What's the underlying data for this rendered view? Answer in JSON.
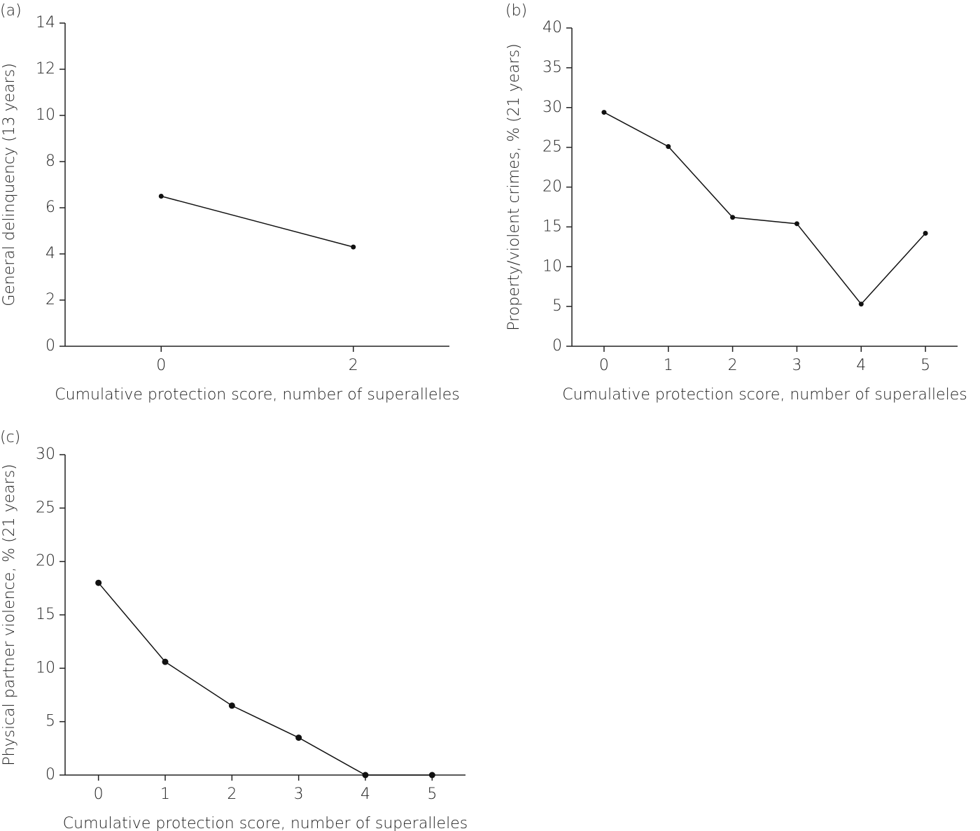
{
  "chart_data": [
    {
      "type": "line",
      "panel_label": "(a)",
      "x_label": "Cumulative protection score, number of superalleles",
      "y_label": "General delinquency (13 years)",
      "x": [
        0,
        2
      ],
      "values": [
        6.5,
        4.3
      ],
      "color": "#111111",
      "xlim": [
        -1,
        3
      ],
      "xticks": [
        0,
        2
      ],
      "ylim": [
        0,
        14
      ],
      "yticks": [
        0,
        2,
        4,
        6,
        8,
        10,
        12,
        14
      ]
    },
    {
      "type": "line",
      "panel_label": "(b)",
      "x_label": "Cumulative protection score, number of superalleles",
      "y_label": "Property/violent crimes, % (21 years)",
      "x": [
        0,
        1,
        2,
        3,
        4,
        5
      ],
      "values": [
        29.4,
        25.1,
        16.2,
        15.4,
        5.3,
        14.2
      ],
      "color": "#111111",
      "xlim": [
        -0.5,
        5.5
      ],
      "xticks": [
        0,
        1,
        2,
        3,
        4,
        5
      ],
      "ylim": [
        0,
        40
      ],
      "yticks": [
        0,
        5,
        10,
        15,
        20,
        25,
        30,
        35,
        40
      ]
    },
    {
      "type": "line",
      "panel_label": "(c)",
      "x_label": "Cumulative protection score, number of superalleles",
      "y_label": "Physical partner violence, % (21 years)",
      "x": [
        0,
        1,
        2,
        3,
        4,
        5
      ],
      "values": [
        18.0,
        10.6,
        6.5,
        3.5,
        0,
        0
      ],
      "color": "#111111",
      "xlim": [
        -0.5,
        5.5
      ],
      "xticks": [
        0,
        1,
        2,
        3,
        4,
        5
      ],
      "ylim": [
        0,
        30
      ],
      "yticks": [
        0,
        5,
        10,
        15,
        20,
        25,
        30
      ]
    }
  ]
}
